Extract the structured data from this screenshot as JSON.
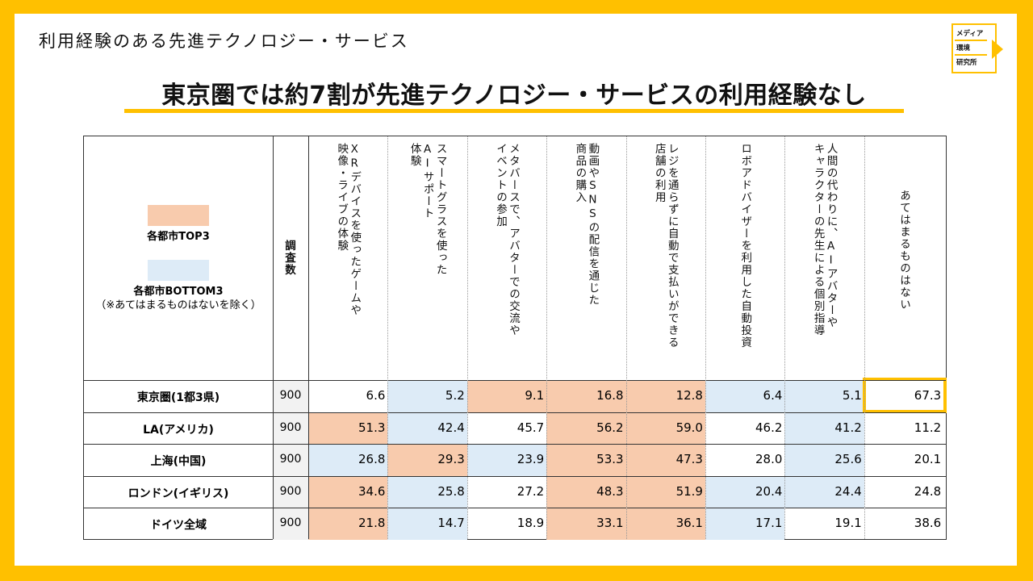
{
  "subtitle": "利用経験のある先進テクノロジー・サービス",
  "headline": "東京圏では約7割が先進テクノロジー・サービスの利用経験なし",
  "logo": {
    "line1": "メディア",
    "line2": "環境",
    "line3": "研究所"
  },
  "colors": {
    "top3": "#F8CBAD",
    "bottom3": "#DDEBF7",
    "accent": "#FFC000",
    "n_col": "#F2F2F2"
  },
  "legend": {
    "top3_label": "各都市TOP3",
    "bottom3_label": "各都市BOTTOM3",
    "bottom3_note": "（※あてはまるものはないを除く）"
  },
  "chart_data": {
    "type": "table",
    "n_header": "調査数",
    "columns": [
      "XRデバイスを使ったゲームや映像・ライブの体験",
      "スマートグラスを使ったAIサポート体験",
      "メタバースで、アバターでの交流やイベントの参加",
      "動画やSNSの配信を通じた商品の購入",
      "レジを通らずに自動で支払いができる店舗の利用",
      "ロボアドバイザーを利用した自動投資",
      "人間の代わりに、AIアバターやキャラクターの先生による個別指導",
      "あてはまるものはない"
    ],
    "column_headers_display": [
      [
        "XRデバイスを使ったゲームや",
        "映像・ライブの体験"
      ],
      [
        "スマートグラスを使った",
        "AIサポート",
        "体験"
      ],
      [
        "メタバースで、アバターでの交流や",
        "イベントの参加"
      ],
      [
        "動画やSNSの配信を通じた",
        "商品の購入"
      ],
      [
        "レジを通らずに自動で支払いができる",
        "店舗の利用"
      ],
      [
        "ロボアドバイザーを利用した自動投資"
      ],
      [
        "人間の代わりに、AIアバターや",
        "キャラクターの先生による個別指導"
      ],
      [
        "あてはまるものはない"
      ]
    ],
    "rows": [
      {
        "label": "東京圏(1都3県)",
        "n": "900",
        "values": [
          "6.6",
          "5.2",
          "9.1",
          "16.8",
          "12.8",
          "6.4",
          "5.1",
          "67.3"
        ],
        "marks": [
          "",
          "bottom",
          "top",
          "top",
          "top",
          "bottom",
          "bottom",
          "highlight"
        ]
      },
      {
        "label": "LA(アメリカ)",
        "n": "900",
        "values": [
          "51.3",
          "42.4",
          "45.7",
          "56.2",
          "59.0",
          "46.2",
          "41.2",
          "11.2"
        ],
        "marks": [
          "top",
          "bottom",
          "",
          "top",
          "top",
          "",
          "bottom",
          ""
        ]
      },
      {
        "label": "上海(中国)",
        "n": "900",
        "values": [
          "26.8",
          "29.3",
          "23.9",
          "53.3",
          "47.3",
          "28.0",
          "25.6",
          "20.1"
        ],
        "marks": [
          "bottom",
          "top",
          "bottom",
          "top",
          "top",
          "",
          "bottom",
          ""
        ]
      },
      {
        "label": "ロンドン(イギリス)",
        "n": "900",
        "values": [
          "34.6",
          "25.8",
          "27.2",
          "48.3",
          "51.9",
          "20.4",
          "24.4",
          "24.8"
        ],
        "marks": [
          "top",
          "bottom",
          "",
          "top",
          "top",
          "bottom",
          "bottom",
          ""
        ]
      },
      {
        "label": "ドイツ全域",
        "n": "900",
        "values": [
          "21.8",
          "14.7",
          "18.9",
          "33.1",
          "36.1",
          "17.1",
          "19.1",
          "38.6"
        ],
        "marks": [
          "top",
          "bottom",
          "",
          "top",
          "top",
          "bottom",
          "",
          ""
        ]
      }
    ]
  }
}
